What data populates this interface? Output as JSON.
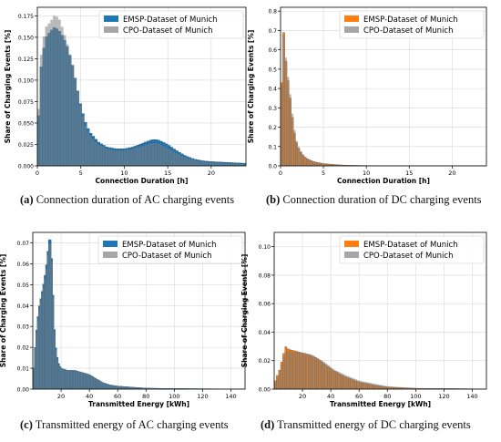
{
  "colors": {
    "emsp_ac": "#1f77b4",
    "emsp_dc": "#ff7f0e",
    "cpo": "#808080"
  },
  "captions": [
    {
      "letter": "(a)",
      "text": " Connection duration of AC charging events"
    },
    {
      "letter": "(b)",
      "text": " Connection duration of DC charging events"
    },
    {
      "letter": "(c)",
      "text": " Transmitted energy of AC charging events"
    },
    {
      "letter": "(d)",
      "text": " Transmitted energy of DC charging events"
    }
  ],
  "chart_data": [
    {
      "type": "bar",
      "xlabel": "Connection Duration [h]",
      "ylabel": "Share of Charging Events [%]",
      "xlim": [
        0,
        24
      ],
      "ylim": [
        0,
        0.185
      ],
      "xticks": [
        0,
        5,
        10,
        15,
        20
      ],
      "yticks": [
        "0.000",
        "0.025",
        "0.050",
        "0.075",
        "0.100",
        "0.125",
        "0.150",
        "0.175"
      ],
      "legend_position": "top-right",
      "series": [
        {
          "name": "EMSP-Dataset of Munich",
          "color_key": "emsp_ac",
          "points": [
            [
              0,
              0.03
            ],
            [
              0.5,
              0.125
            ],
            [
              1,
              0.15
            ],
            [
              1.5,
              0.157
            ],
            [
              2,
              0.162
            ],
            [
              2.5,
              0.158
            ],
            [
              3,
              0.15
            ],
            [
              3.5,
              0.138
            ],
            [
              4,
              0.12
            ],
            [
              4.5,
              0.095
            ],
            [
              5,
              0.07
            ],
            [
              5.5,
              0.052
            ],
            [
              6,
              0.04
            ],
            [
              7,
              0.028
            ],
            [
              8,
              0.022
            ],
            [
              9,
              0.02
            ],
            [
              10,
              0.02
            ],
            [
              11,
              0.022
            ],
            [
              12,
              0.026
            ],
            [
              13,
              0.03
            ],
            [
              13.5,
              0.031
            ],
            [
              14,
              0.03
            ],
            [
              15,
              0.025
            ],
            [
              16,
              0.018
            ],
            [
              17,
              0.012
            ],
            [
              18,
              0.008
            ],
            [
              19,
              0.006
            ],
            [
              20,
              0.005
            ],
            [
              22,
              0.004
            ],
            [
              24,
              0.003
            ]
          ]
        },
        {
          "name": "CPO-Dataset of Munich",
          "color_key": "cpo",
          "points": [
            [
              0,
              0.035
            ],
            [
              0.5,
              0.14
            ],
            [
              1,
              0.162
            ],
            [
              1.5,
              0.168
            ],
            [
              2,
              0.176
            ],
            [
              2.5,
              0.172
            ],
            [
              3,
              0.158
            ],
            [
              3.5,
              0.14
            ],
            [
              4,
              0.12
            ],
            [
              4.5,
              0.095
            ],
            [
              5,
              0.068
            ],
            [
              5.5,
              0.048
            ],
            [
              6,
              0.036
            ],
            [
              7,
              0.025
            ],
            [
              8,
              0.02
            ],
            [
              9,
              0.018
            ],
            [
              10,
              0.018
            ],
            [
              11,
              0.02
            ],
            [
              12,
              0.023
            ],
            [
              13,
              0.026
            ],
            [
              13.5,
              0.027
            ],
            [
              14,
              0.026
            ],
            [
              15,
              0.021
            ],
            [
              16,
              0.015
            ],
            [
              17,
              0.01
            ],
            [
              18,
              0.007
            ],
            [
              19,
              0.005
            ],
            [
              20,
              0.004
            ],
            [
              22,
              0.003
            ],
            [
              24,
              0.002
            ]
          ]
        }
      ]
    },
    {
      "type": "bar",
      "xlabel": "Connection Duration [h]",
      "ylabel": "Share of Charging Events [%]",
      "xlim": [
        0,
        24
      ],
      "ylim": [
        0,
        0.82
      ],
      "xticks": [
        0,
        5,
        10,
        15,
        20
      ],
      "yticks": [
        "0.0",
        "0.1",
        "0.2",
        "0.3",
        "0.4",
        "0.5",
        "0.6",
        "0.7",
        "0.8"
      ],
      "legend_position": "top-right",
      "series": [
        {
          "name": "EMSP-Dataset of Munich",
          "color_key": "emsp_dc",
          "points": [
            [
              0,
              0.08
            ],
            [
              0.25,
              0.78
            ],
            [
              0.5,
              0.6
            ],
            [
              0.75,
              0.48
            ],
            [
              1,
              0.4
            ],
            [
              1.25,
              0.3
            ],
            [
              1.5,
              0.2
            ],
            [
              1.75,
              0.14
            ],
            [
              2,
              0.1
            ],
            [
              2.5,
              0.06
            ],
            [
              3,
              0.04
            ],
            [
              3.5,
              0.028
            ],
            [
              4,
              0.02
            ],
            [
              5,
              0.012
            ],
            [
              6,
              0.008
            ],
            [
              7,
              0.005
            ],
            [
              8,
              0.003
            ],
            [
              10,
              0.002
            ],
            [
              15,
              0.001
            ],
            [
              24,
              0.001
            ]
          ]
        },
        {
          "name": "CPO-Dataset of Munich",
          "color_key": "cpo",
          "points": [
            [
              0,
              0.1
            ],
            [
              0.25,
              0.73
            ],
            [
              0.5,
              0.62
            ],
            [
              0.75,
              0.5
            ],
            [
              1,
              0.42
            ],
            [
              1.25,
              0.32
            ],
            [
              1.5,
              0.22
            ],
            [
              1.75,
              0.15
            ],
            [
              2,
              0.11
            ],
            [
              2.5,
              0.065
            ],
            [
              3,
              0.042
            ],
            [
              3.5,
              0.03
            ],
            [
              4,
              0.022
            ],
            [
              5,
              0.013
            ],
            [
              6,
              0.009
            ],
            [
              7,
              0.006
            ],
            [
              8,
              0.004
            ],
            [
              10,
              0.002
            ],
            [
              15,
              0.001
            ],
            [
              24,
              0.001
            ]
          ]
        }
      ]
    },
    {
      "type": "bar",
      "xlabel": "Transmitted Energy [kWh]",
      "ylabel": "Share of Charging Events [%]",
      "xlim": [
        0,
        150
      ],
      "ylim": [
        0,
        0.075
      ],
      "xticks": [
        20,
        40,
        60,
        80,
        100,
        120,
        140
      ],
      "yticks": [
        "0.00",
        "0.01",
        "0.02",
        "0.03",
        "0.04",
        "0.05",
        "0.06",
        "0.07"
      ],
      "legend_position": "top-right",
      "series": [
        {
          "name": "EMSP-Dataset of Munich",
          "color_key": "emsp_ac",
          "points": [
            [
              0,
              0.005
            ],
            [
              2,
              0.025
            ],
            [
              4,
              0.038
            ],
            [
              6,
              0.045
            ],
            [
              8,
              0.052
            ],
            [
              10,
              0.062
            ],
            [
              11,
              0.07
            ],
            [
              12,
              0.073
            ],
            [
              13,
              0.07
            ],
            [
              14,
              0.055
            ],
            [
              15,
              0.035
            ],
            [
              16,
              0.022
            ],
            [
              18,
              0.013
            ],
            [
              20,
              0.01
            ],
            [
              25,
              0.009
            ],
            [
              30,
              0.009
            ],
            [
              35,
              0.008
            ],
            [
              40,
              0.007
            ],
            [
              45,
              0.005
            ],
            [
              50,
              0.003
            ],
            [
              55,
              0.002
            ],
            [
              60,
              0.0015
            ],
            [
              70,
              0.001
            ],
            [
              80,
              0.0005
            ],
            [
              100,
              0.0003
            ],
            [
              150,
              0.0001
            ]
          ]
        },
        {
          "name": "CPO-Dataset of Munich",
          "color_key": "cpo",
          "points": [
            [
              0,
              0.006
            ],
            [
              2,
              0.024
            ],
            [
              4,
              0.036
            ],
            [
              6,
              0.044
            ],
            [
              8,
              0.05
            ],
            [
              10,
              0.06
            ],
            [
              11,
              0.068
            ],
            [
              12,
              0.071
            ],
            [
              13,
              0.068
            ],
            [
              14,
              0.054
            ],
            [
              15,
              0.034
            ],
            [
              16,
              0.021
            ],
            [
              18,
              0.012
            ],
            [
              20,
              0.01
            ],
            [
              25,
              0.009
            ],
            [
              30,
              0.009
            ],
            [
              35,
              0.008
            ],
            [
              40,
              0.007
            ],
            [
              45,
              0.005
            ],
            [
              50,
              0.003
            ],
            [
              55,
              0.002
            ],
            [
              60,
              0.0015
            ],
            [
              70,
              0.001
            ],
            [
              80,
              0.0005
            ],
            [
              100,
              0.0003
            ],
            [
              150,
              0.0001
            ]
          ]
        }
      ]
    },
    {
      "type": "bar",
      "xlabel": "Transmitted Energy [kWh]",
      "ylabel": "Share of Charging Events [%]",
      "xlim": [
        0,
        150
      ],
      "ylim": [
        0,
        0.11
      ],
      "xticks": [
        20,
        40,
        60,
        80,
        100,
        120,
        140
      ],
      "yticks": [
        "0.00",
        "0.02",
        "0.04",
        "0.06",
        "0.08",
        "0.10"
      ],
      "legend_position": "top-right",
      "series": [
        {
          "name": "EMSP-Dataset of Munich",
          "color_key": "emsp_dc",
          "points": [
            [
              0,
              0.004
            ],
            [
              4,
              0.014
            ],
            [
              6,
              0.022
            ],
            [
              8,
              0.03
            ],
            [
              10,
              0.028
            ],
            [
              14,
              0.027
            ],
            [
              18,
              0.026
            ],
            [
              22,
              0.025
            ],
            [
              26,
              0.024
            ],
            [
              30,
              0.022
            ],
            [
              34,
              0.019
            ],
            [
              38,
              0.016
            ],
            [
              42,
              0.013
            ],
            [
              46,
              0.011
            ],
            [
              50,
              0.009
            ],
            [
              55,
              0.007
            ],
            [
              60,
              0.005
            ],
            [
              65,
              0.004
            ],
            [
              70,
              0.003
            ],
            [
              80,
              0.0015
            ],
            [
              100,
              0.0006
            ],
            [
              150,
              0.0002
            ]
          ]
        },
        {
          "name": "CPO-Dataset of Munich",
          "color_key": "cpo",
          "points": [
            [
              0,
              0.003
            ],
            [
              4,
              0.012
            ],
            [
              6,
              0.02
            ],
            [
              8,
              0.026
            ],
            [
              10,
              0.026
            ],
            [
              14,
              0.026
            ],
            [
              18,
              0.026
            ],
            [
              22,
              0.025
            ],
            [
              26,
              0.024
            ],
            [
              30,
              0.022
            ],
            [
              34,
              0.02
            ],
            [
              38,
              0.017
            ],
            [
              42,
              0.014
            ],
            [
              46,
              0.012
            ],
            [
              50,
              0.01
            ],
            [
              55,
              0.008
            ],
            [
              60,
              0.006
            ],
            [
              65,
              0.005
            ],
            [
              70,
              0.004
            ],
            [
              80,
              0.002
            ],
            [
              100,
              0.0008
            ],
            [
              150,
              0.0002
            ]
          ]
        }
      ]
    }
  ]
}
